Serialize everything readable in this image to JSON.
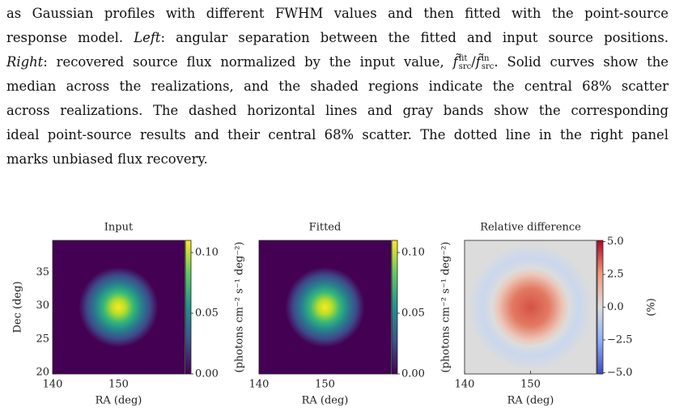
{
  "caption": {
    "lines": [
      [
        {
          "text": "as Gaussian profiles with different FWHM values and then fitted with the point-source"
        }
      ],
      [
        {
          "text": "response model. "
        },
        {
          "text": "Left",
          "italic": true
        },
        {
          "text": ": angular separation between the fitted and input source positions."
        }
      ],
      [
        {
          "text": "Right",
          "italic": true
        },
        {
          "text": ": recovered source flux normalized by the input value, "
        },
        {
          "base": "f̃",
          "sup": "fit",
          "sub": "src"
        },
        {
          "text": "/"
        },
        {
          "base": "f̃",
          "sup": "in",
          "sub": "src"
        },
        {
          "text": ". Solid curves show the"
        }
      ],
      [
        {
          "text": "median across the realizations, and the shaded regions indicate the central 68% scatter"
        }
      ],
      [
        {
          "text": "across realizations. The dashed horizontal lines and gray bands show the corresponding"
        }
      ],
      [
        {
          "text": "ideal point-source results and their central 68% scatter. The dotted line in the right panel"
        }
      ],
      [
        {
          "text": "marks unbiased flux recovery."
        }
      ]
    ]
  },
  "figure": {
    "panels": [
      {
        "title": "Input",
        "xlabel": "RA (deg)",
        "ylabel": "Dec (deg)",
        "xlim": [
          140,
          160
        ],
        "ylim": [
          20,
          40
        ],
        "xticks": [
          140,
          150
        ],
        "yticks": [
          20,
          25,
          30,
          35
        ],
        "colorbar": {
          "colormap": "viridis",
          "lim": [
            0,
            0.11
          ],
          "ticks": [
            {
              "value": 0,
              "label": "0.00"
            },
            {
              "value": 0.05,
              "label": "0.05"
            },
            {
              "value": 0.1,
              "label": "0.10"
            }
          ],
          "label": "(photons cm⁻² s⁻¹ deg⁻²)"
        }
      },
      {
        "title": "Fitted",
        "xlabel": "RA (deg)",
        "xlim": [
          140,
          160
        ],
        "ylim": [
          20,
          40
        ],
        "xticks": [
          140,
          150
        ],
        "colorbar": {
          "colormap": "viridis",
          "lim": [
            0,
            0.11
          ],
          "ticks": [
            {
              "value": 0,
              "label": "0.00"
            },
            {
              "value": 0.05,
              "label": "0.05"
            },
            {
              "value": 0.1,
              "label": "0.10"
            }
          ],
          "label": "(photons cm⁻² s⁻¹ deg⁻²)"
        }
      },
      {
        "title": "Relative difference",
        "xlabel": "RA (deg)",
        "xlim": [
          140,
          160
        ],
        "ylim": [
          20,
          40
        ],
        "xticks": [
          140,
          150
        ],
        "colorbar": {
          "colormap": "coolwarm",
          "lim": [
            -5.1,
            5.1
          ],
          "ticks": [
            {
              "value": 5,
              "label": "5.0"
            },
            2.5,
            {
              "value": 0,
              "label": "0.0"
            },
            {
              "value": -2.5,
              "label": "−2.5"
            },
            {
              "value": -5,
              "label": "−5.0"
            }
          ],
          "label": "(%)"
        }
      }
    ]
  }
}
